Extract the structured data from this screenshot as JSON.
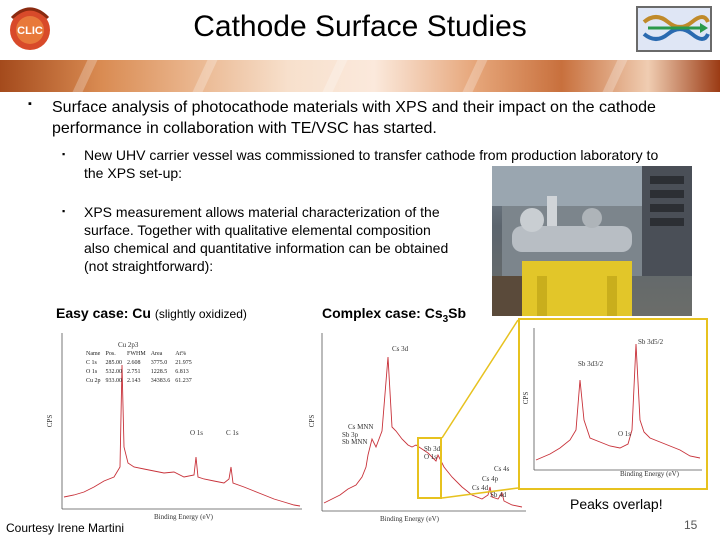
{
  "slide": {
    "title": "Cathode Surface Studies",
    "logo_text": "CLIC",
    "page_number": "15"
  },
  "bullets": {
    "main": "Surface analysis of photocathode materials with XPS and their impact on the cathode performance in collaboration with TE/VSC has started.",
    "sub1": "New UHV carrier vessel was commissioned to transfer cathode from production laboratory to the XPS set-up:",
    "sub2": "XPS measurement allows material characterization of the surface. Together with qualitative elemental composition also chemical and quantitative information can be obtained (not straightforward):"
  },
  "cases": {
    "easy_label": "Easy case: Cu",
    "easy_note": "(slightly oxidized)",
    "complex_label": "Complex case: Cs",
    "complex_sub": "3",
    "complex_suffix": "Sb"
  },
  "spectra": {
    "left": {
      "xlabel": "Binding Energy (eV)",
      "ylabel": "CPS",
      "peaks": [
        "Cu 2p3",
        "O 1s",
        "C 1s"
      ],
      "table": {
        "headers": [
          "Name",
          "Pos.",
          "FWHM",
          "Area",
          "At%"
        ],
        "rows": [
          [
            "C 1s",
            "285.00",
            "2.608",
            "3775.0",
            "21.975"
          ],
          [
            "O 1s",
            "532.00",
            "2.751",
            "1228.5",
            "6.813"
          ],
          [
            "Cu 2p",
            "933.00",
            "2.143",
            "34383.6",
            "61.237"
          ]
        ]
      }
    },
    "middle": {
      "xlabel": "Binding Energy (eV)",
      "ylabel": "CPS",
      "peaks": [
        "Cs 3d",
        "Cs MNN",
        "Sb 3p",
        "Sb MNN",
        "Sb 3d",
        "O 1s",
        "Cs 4s",
        "Cs 4p",
        "Cs 4d",
        "Sb 4d"
      ]
    },
    "zoom": {
      "xlabel": "Binding Energy (eV)",
      "ylabel": "CPS",
      "peaks": [
        "Sb 3d5/2",
        "Sb 3d3/2",
        "O 1s"
      ]
    },
    "annotation": "Peaks overlap!"
  },
  "footer": {
    "courtesy": "Courtesy Irene Martini"
  },
  "colors": {
    "spectrum_line": "#c8323a",
    "highlight": "#e7c21f",
    "band_primary": "#c8703d"
  }
}
